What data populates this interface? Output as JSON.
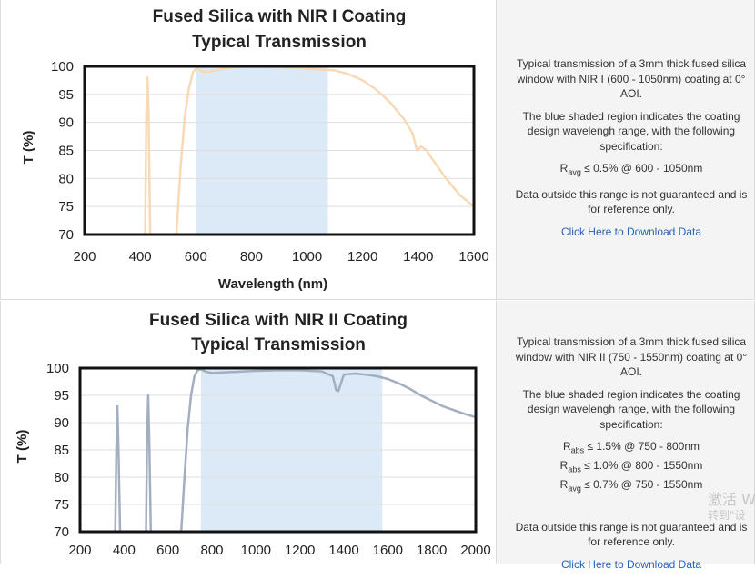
{
  "charts": [
    {
      "title_line1": "Fused Silica with NIR I Coating",
      "title_line2": "Typical Transmission",
      "ylabel": "T (%)",
      "xlabel": "Wavelength (nm)",
      "description": {
        "p1": "Typical transmission of a 3mm thick fused silica window with NIR I (600 - 1050nm) coating at 0° AOI.",
        "p2": "The blue shaded region indicates the coating design wavelengh range, with the following specification:",
        "specs": [
          {
            "sym": "R",
            "sub": "avg",
            "text": " ≤ 0.5% @ 600 - 1050nm"
          }
        ],
        "p3": "Data outside this range is not guaranteed and is for reference only.",
        "link": "Click Here to Download Data"
      }
    },
    {
      "title_line1": "Fused Silica with NIR II Coating",
      "title_line2": "Typical Transmission",
      "ylabel": "T (%)",
      "xlabel": "",
      "description": {
        "p1": "Typical transmission of a 3mm thick fused silica window with NIR II (750 - 1550nm) coating at 0° AOI.",
        "p2": "The blue shaded region indicates the coating design wavelengh range, with the following specification:",
        "specs": [
          {
            "sym": "R",
            "sub": "abs",
            "text": " ≤ 1.5% @ 750 - 800nm"
          },
          {
            "sym": "R",
            "sub": "abs",
            "text": " ≤ 1.0% @ 800 - 1550nm"
          },
          {
            "sym": "R",
            "sub": "avg",
            "text": " ≤ 0.7% @ 750 - 1550nm"
          }
        ],
        "p3": "Data outside this range is not guaranteed and is for reference only.",
        "link": "Click Here to Download Data"
      }
    }
  ],
  "chart_data": [
    {
      "type": "line",
      "title": "Fused Silica with NIR I Coating Typical Transmission",
      "xlabel": "Wavelength (nm)",
      "ylabel": "T (%)",
      "xlim": [
        200,
        1600
      ],
      "ylim": [
        70,
        100
      ],
      "xticks": [
        200,
        400,
        600,
        800,
        1000,
        1200,
        1400,
        1600
      ],
      "yticks": [
        70,
        75,
        80,
        85,
        90,
        95,
        100
      ],
      "grid": true,
      "shaded_range": [
        600,
        1075
      ],
      "shade_color": "#dce9f6",
      "line_color": "#f8d9b6",
      "series": [
        {
          "x": [
            418,
            422,
            426,
            430,
            436
          ],
          "y": [
            70,
            92,
            98,
            92,
            70
          ]
        },
        {
          "x": [
            530,
            545,
            560,
            575,
            590,
            600,
            610,
            625,
            650,
            700,
            750,
            800,
            850,
            900,
            950,
            1000,
            1050,
            1100,
            1150,
            1200,
            1250,
            1300,
            1350,
            1380,
            1395,
            1410,
            1430,
            1450,
            1500,
            1550,
            1600
          ],
          "y": [
            70,
            82,
            91,
            96,
            99.0,
            99.6,
            99.5,
            99.0,
            99.1,
            99.6,
            99.9,
            100.0,
            100.0,
            99.9,
            99.8,
            99.6,
            99.4,
            99.3,
            98.6,
            97.5,
            95.8,
            93.5,
            90.5,
            88.0,
            85.0,
            85.7,
            85.0,
            83.5,
            80.0,
            77.0,
            75.0
          ]
        }
      ]
    },
    {
      "type": "line",
      "title": "Fused Silica with NIR II Coating Typical Transmission",
      "xlabel": "",
      "ylabel": "T (%)",
      "xlim": [
        200,
        2000
      ],
      "ylim": [
        70,
        100
      ],
      "xticks": [
        200,
        400,
        600,
        800,
        1000,
        1200,
        1400,
        1600,
        1800,
        2000
      ],
      "yticks": [
        70,
        75,
        80,
        85,
        90,
        95,
        100
      ],
      "grid": true,
      "shaded_range": [
        750,
        1575
      ],
      "shade_color": "#dce9f6",
      "line_color": "#a4aec1",
      "series": [
        {
          "x": [
            360,
            365,
            370,
            375,
            382
          ],
          "y": [
            70,
            85,
            93,
            85,
            70
          ]
        },
        {
          "x": [
            500,
            505,
            510,
            515,
            522
          ],
          "y": [
            70,
            87,
            95,
            87,
            70
          ]
        },
        {
          "x": [
            660,
            675,
            690,
            705,
            720,
            735,
            750,
            775,
            800,
            850,
            900,
            1000,
            1100,
            1200,
            1300,
            1350,
            1365,
            1375,
            1385,
            1400,
            1450,
            1500,
            1550,
            1600,
            1650,
            1700,
            1750,
            1800,
            1850,
            1900,
            1950,
            2000
          ],
          "y": [
            70,
            80,
            89,
            95,
            98.5,
            99.6,
            99.8,
            99.3,
            99.1,
            99.2,
            99.3,
            99.5,
            99.6,
            99.6,
            99.4,
            98.5,
            96.0,
            95.8,
            97.0,
            98.8,
            99.0,
            98.8,
            98.5,
            98.0,
            97.2,
            96.2,
            95.0,
            94.0,
            93.0,
            92.3,
            91.6,
            91.0
          ]
        }
      ]
    }
  ],
  "watermark": {
    "line1": "激活 W",
    "line2": "转到\"设"
  }
}
